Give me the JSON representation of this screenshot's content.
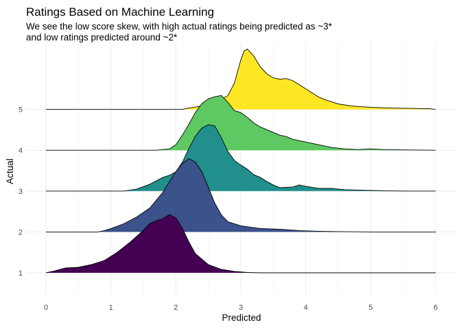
{
  "chart_data": {
    "type": "ridgeline",
    "title": "Ratings Based on Machine Learning",
    "subtitle_lines": [
      "We see the low score skew, with high actual ratings being predicted as ~3*",
      "and low ratings predicted around ~2*"
    ],
    "xlabel": "Predicted",
    "ylabel": "Actual",
    "xlim": [
      -0.3,
      6.3
    ],
    "x_ticks": [
      0,
      1,
      2,
      3,
      4,
      5,
      6
    ],
    "categories": [
      "1",
      "2",
      "3",
      "4",
      "5"
    ],
    "grid": true,
    "legend": "none",
    "series": [
      {
        "actual": "1",
        "color": "#440154",
        "density": [
          [
            0,
            0
          ],
          [
            0.1,
            0.02
          ],
          [
            0.3,
            0.07
          ],
          [
            0.5,
            0.08
          ],
          [
            0.7,
            0.12
          ],
          [
            0.9,
            0.18
          ],
          [
            1.1,
            0.3
          ],
          [
            1.3,
            0.45
          ],
          [
            1.5,
            0.62
          ],
          [
            1.6,
            0.72
          ],
          [
            1.7,
            0.76
          ],
          [
            1.8,
            0.79
          ],
          [
            1.9,
            0.85
          ],
          [
            2.0,
            0.8
          ],
          [
            2.1,
            0.65
          ],
          [
            2.2,
            0.45
          ],
          [
            2.3,
            0.28
          ],
          [
            2.5,
            0.12
          ],
          [
            2.7,
            0.05
          ],
          [
            2.9,
            0.02
          ],
          [
            3.1,
            0.005
          ],
          [
            3.3,
            0
          ],
          [
            6.0,
            0
          ]
        ]
      },
      {
        "actual": "2",
        "color": "#3b528b",
        "density": [
          [
            0,
            0
          ],
          [
            0.8,
            0
          ],
          [
            0.9,
            0.02
          ],
          [
            1.0,
            0.05
          ],
          [
            1.2,
            0.12
          ],
          [
            1.4,
            0.22
          ],
          [
            1.6,
            0.35
          ],
          [
            1.8,
            0.58
          ],
          [
            2.0,
            0.88
          ],
          [
            2.1,
            1.0
          ],
          [
            2.2,
            1.07
          ],
          [
            2.3,
            1.02
          ],
          [
            2.4,
            0.88
          ],
          [
            2.5,
            0.65
          ],
          [
            2.6,
            0.42
          ],
          [
            2.7,
            0.25
          ],
          [
            2.8,
            0.15
          ],
          [
            3.0,
            0.09
          ],
          [
            3.3,
            0.05
          ],
          [
            3.6,
            0.04
          ],
          [
            3.9,
            0.02
          ],
          [
            4.2,
            0.01
          ],
          [
            4.5,
            0.005
          ],
          [
            5.0,
            0
          ],
          [
            6.0,
            0
          ]
        ]
      },
      {
        "actual": "3",
        "color": "#21908c",
        "density": [
          [
            0,
            0
          ],
          [
            1.2,
            0
          ],
          [
            1.4,
            0.03
          ],
          [
            1.6,
            0.1
          ],
          [
            1.8,
            0.2
          ],
          [
            1.9,
            0.23
          ],
          [
            2.0,
            0.28
          ],
          [
            2.1,
            0.42
          ],
          [
            2.2,
            0.62
          ],
          [
            2.3,
            0.8
          ],
          [
            2.4,
            0.92
          ],
          [
            2.5,
            0.97
          ],
          [
            2.6,
            0.95
          ],
          [
            2.7,
            0.78
          ],
          [
            2.8,
            0.58
          ],
          [
            2.9,
            0.45
          ],
          [
            3.0,
            0.38
          ],
          [
            3.1,
            0.32
          ],
          [
            3.2,
            0.24
          ],
          [
            3.3,
            0.2
          ],
          [
            3.4,
            0.14
          ],
          [
            3.5,
            0.09
          ],
          [
            3.6,
            0.05
          ],
          [
            3.8,
            0.06
          ],
          [
            3.9,
            0.09
          ],
          [
            4.0,
            0.07
          ],
          [
            4.2,
            0.04
          ],
          [
            4.4,
            0.04
          ],
          [
            4.6,
            0.02
          ],
          [
            5.0,
            0.01
          ],
          [
            5.5,
            0
          ],
          [
            6.0,
            0
          ]
        ]
      },
      {
        "actual": "4",
        "color": "#5ec962",
        "density": [
          [
            0,
            0
          ],
          [
            1.7,
            0
          ],
          [
            1.9,
            0.02
          ],
          [
            2.0,
            0.08
          ],
          [
            2.1,
            0.22
          ],
          [
            2.2,
            0.38
          ],
          [
            2.3,
            0.55
          ],
          [
            2.4,
            0.68
          ],
          [
            2.5,
            0.75
          ],
          [
            2.6,
            0.78
          ],
          [
            2.7,
            0.8
          ],
          [
            2.8,
            0.7
          ],
          [
            2.9,
            0.58
          ],
          [
            3.0,
            0.55
          ],
          [
            3.1,
            0.48
          ],
          [
            3.2,
            0.4
          ],
          [
            3.3,
            0.34
          ],
          [
            3.4,
            0.3
          ],
          [
            3.5,
            0.26
          ],
          [
            3.6,
            0.22
          ],
          [
            3.7,
            0.2
          ],
          [
            3.8,
            0.16
          ],
          [
            4.0,
            0.12
          ],
          [
            4.2,
            0.08
          ],
          [
            4.4,
            0.04
          ],
          [
            4.6,
            0.02
          ],
          [
            4.8,
            0.01
          ],
          [
            5.0,
            0.02
          ],
          [
            5.2,
            0.01
          ],
          [
            5.5,
            0.005
          ],
          [
            6.0,
            0
          ]
        ]
      },
      {
        "actual": "5",
        "color": "#fde725",
        "density": [
          [
            0,
            0
          ],
          [
            2.1,
            0
          ],
          [
            2.2,
            0.02
          ],
          [
            2.4,
            0.05
          ],
          [
            2.6,
            0.1
          ],
          [
            2.8,
            0.2
          ],
          [
            2.9,
            0.38
          ],
          [
            3.0,
            0.72
          ],
          [
            3.05,
            0.85
          ],
          [
            3.1,
            0.88
          ],
          [
            3.2,
            0.78
          ],
          [
            3.3,
            0.62
          ],
          [
            3.4,
            0.52
          ],
          [
            3.5,
            0.46
          ],
          [
            3.6,
            0.44
          ],
          [
            3.7,
            0.45
          ],
          [
            3.8,
            0.42
          ],
          [
            3.9,
            0.36
          ],
          [
            4.0,
            0.3
          ],
          [
            4.1,
            0.24
          ],
          [
            4.2,
            0.18
          ],
          [
            4.3,
            0.14
          ],
          [
            4.5,
            0.08
          ],
          [
            4.7,
            0.05
          ],
          [
            5.0,
            0.03
          ],
          [
            5.3,
            0.02
          ],
          [
            5.6,
            0.015
          ],
          [
            5.9,
            0.01
          ],
          [
            6.0,
            0
          ]
        ]
      }
    ]
  }
}
